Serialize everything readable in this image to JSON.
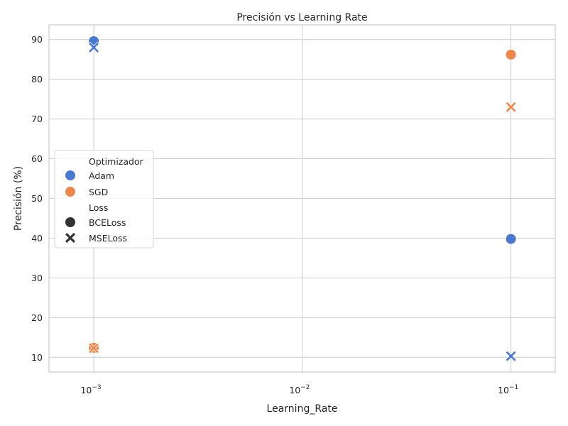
{
  "chart_data": {
    "type": "scatter",
    "title": "Precisión vs Learning Rate",
    "xlabel": "Learning_Rate",
    "ylabel": "Precisión (%)",
    "xscale": "log",
    "xlim": [
      0.00061,
      0.163
    ],
    "ylim": [
      6.3,
      93.7
    ],
    "xticks": [
      {
        "value": 0.001,
        "base": "10",
        "exp": "−3"
      },
      {
        "value": 0.01,
        "base": "10",
        "exp": "−2"
      },
      {
        "value": 0.1,
        "base": "10",
        "exp": "−1"
      }
    ],
    "yticks": [
      10,
      20,
      30,
      40,
      50,
      60,
      70,
      80,
      90
    ],
    "grid": true,
    "legend": {
      "placement": "center-left",
      "hue_title": "Optimizador",
      "style_title": "Loss",
      "hue_entries": [
        {
          "label": "Adam",
          "color": "#4878d0"
        },
        {
          "label": "SGD",
          "color": "#ee854a"
        }
      ],
      "style_entries": [
        {
          "label": "BCELoss",
          "marker": "circle",
          "color": "#333333"
        },
        {
          "label": "MSELoss",
          "marker": "x",
          "color": "#333333"
        }
      ]
    },
    "series": [
      {
        "optimizer": "Adam",
        "loss": "BCELoss",
        "color": "#4878d0",
        "marker": "circle",
        "points": [
          {
            "x": 0.001,
            "y": 89.6
          },
          {
            "x": 0.1,
            "y": 39.8
          }
        ]
      },
      {
        "optimizer": "Adam",
        "loss": "MSELoss",
        "color": "#4878d0",
        "marker": "x",
        "points": [
          {
            "x": 0.001,
            "y": 88.0
          },
          {
            "x": 0.1,
            "y": 10.3
          }
        ]
      },
      {
        "optimizer": "SGD",
        "loss": "BCELoss",
        "color": "#ee854a",
        "marker": "circle",
        "points": [
          {
            "x": 0.001,
            "y": 12.4
          },
          {
            "x": 0.1,
            "y": 86.2
          }
        ]
      },
      {
        "optimizer": "SGD",
        "loss": "MSELoss",
        "color": "#ee854a",
        "marker": "x",
        "points": [
          {
            "x": 0.001,
            "y": 12.3
          },
          {
            "x": 0.1,
            "y": 73.0
          }
        ]
      }
    ]
  }
}
